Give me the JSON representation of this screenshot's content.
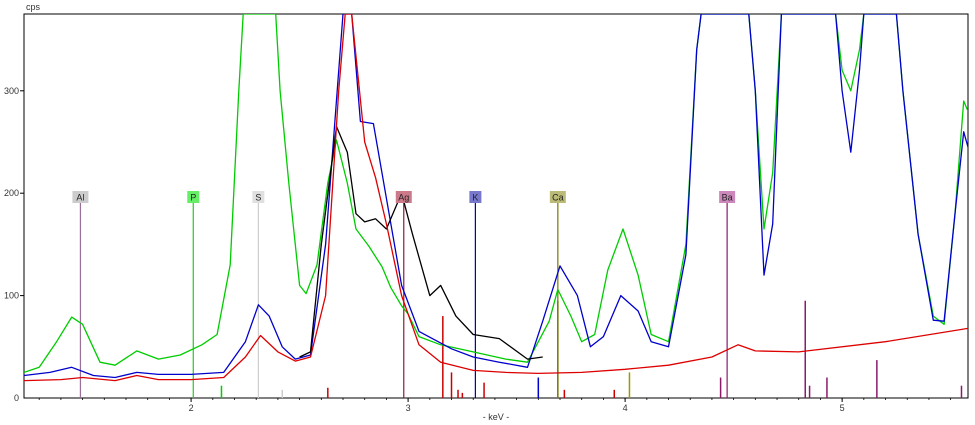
{
  "chart_data": {
    "type": "line",
    "ylabel": "cps",
    "xlabel": "- keV -",
    "xlim": [
      1.23,
      5.58
    ],
    "ylim": [
      0,
      375
    ],
    "x_ticks": [
      2,
      3,
      4,
      5
    ],
    "y_ticks": [
      100,
      200,
      300
    ],
    "grid": false,
    "legend": "none",
    "series": [
      {
        "color": "#00cc00",
        "points": [
          [
            1.23,
            25
          ],
          [
            1.3,
            30
          ],
          [
            1.38,
            55
          ],
          [
            1.45,
            79
          ],
          [
            1.5,
            72
          ],
          [
            1.58,
            35
          ],
          [
            1.65,
            32
          ],
          [
            1.75,
            46
          ],
          [
            1.85,
            38
          ],
          [
            1.95,
            42
          ],
          [
            2.05,
            52
          ],
          [
            2.12,
            62
          ],
          [
            2.18,
            130
          ],
          [
            2.22,
            300
          ],
          [
            2.24,
            375
          ],
          [
            2.39,
            375
          ],
          [
            2.41,
            300
          ],
          [
            2.45,
            210
          ],
          [
            2.5,
            110
          ],
          [
            2.53,
            102
          ],
          [
            2.58,
            130
          ],
          [
            2.63,
            210
          ],
          [
            2.67,
            252
          ],
          [
            2.72,
            210
          ],
          [
            2.76,
            165
          ],
          [
            2.82,
            148
          ],
          [
            2.88,
            128
          ],
          [
            2.92,
            108
          ],
          [
            2.97,
            90
          ],
          [
            3.0,
            82
          ],
          [
            3.05,
            60
          ],
          [
            3.15,
            52
          ],
          [
            3.3,
            45
          ],
          [
            3.45,
            38
          ],
          [
            3.55,
            35
          ],
          [
            3.65,
            75
          ],
          [
            3.69,
            106
          ],
          [
            3.75,
            80
          ],
          [
            3.8,
            55
          ],
          [
            3.86,
            62
          ],
          [
            3.92,
            125
          ],
          [
            3.99,
            165
          ],
          [
            4.06,
            120
          ],
          [
            4.12,
            62
          ],
          [
            4.2,
            55
          ],
          [
            4.28,
            150
          ],
          [
            4.33,
            340
          ],
          [
            4.35,
            375
          ],
          [
            4.57,
            375
          ],
          [
            4.6,
            300
          ],
          [
            4.64,
            165
          ],
          [
            4.68,
            220
          ],
          [
            4.72,
            375
          ],
          [
            4.97,
            375
          ],
          [
            5.0,
            320
          ],
          [
            5.04,
            300
          ],
          [
            5.08,
            340
          ],
          [
            5.1,
            375
          ],
          [
            5.25,
            375
          ],
          [
            5.28,
            300
          ],
          [
            5.35,
            160
          ],
          [
            5.42,
            80
          ],
          [
            5.47,
            72
          ],
          [
            5.52,
            180
          ],
          [
            5.56,
            290
          ],
          [
            5.58,
            280
          ]
        ]
      },
      {
        "color": "#0000cc",
        "points": [
          [
            1.23,
            22
          ],
          [
            1.35,
            25
          ],
          [
            1.45,
            30
          ],
          [
            1.55,
            22
          ],
          [
            1.65,
            20
          ],
          [
            1.75,
            25
          ],
          [
            1.85,
            23
          ],
          [
            2.0,
            23
          ],
          [
            2.15,
            25
          ],
          [
            2.25,
            55
          ],
          [
            2.31,
            91
          ],
          [
            2.36,
            80
          ],
          [
            2.42,
            50
          ],
          [
            2.48,
            38
          ],
          [
            2.55,
            42
          ],
          [
            2.62,
            150
          ],
          [
            2.7,
            375
          ],
          [
            2.74,
            375
          ],
          [
            2.78,
            270
          ],
          [
            2.84,
            268
          ],
          [
            2.9,
            195
          ],
          [
            2.97,
            110
          ],
          [
            3.05,
            65
          ],
          [
            3.2,
            48
          ],
          [
            3.3,
            40
          ],
          [
            3.42,
            35
          ],
          [
            3.55,
            30
          ],
          [
            3.62,
            75
          ],
          [
            3.7,
            129
          ],
          [
            3.78,
            100
          ],
          [
            3.84,
            50
          ],
          [
            3.9,
            60
          ],
          [
            3.98,
            100
          ],
          [
            4.06,
            85
          ],
          [
            4.12,
            55
          ],
          [
            4.2,
            50
          ],
          [
            4.28,
            140
          ],
          [
            4.33,
            340
          ],
          [
            4.35,
            375
          ],
          [
            4.57,
            375
          ],
          [
            4.6,
            300
          ],
          [
            4.64,
            120
          ],
          [
            4.68,
            170
          ],
          [
            4.72,
            375
          ],
          [
            4.97,
            375
          ],
          [
            5.0,
            300
          ],
          [
            5.04,
            240
          ],
          [
            5.08,
            320
          ],
          [
            5.1,
            375
          ],
          [
            5.25,
            375
          ],
          [
            5.28,
            300
          ],
          [
            5.35,
            160
          ],
          [
            5.42,
            76
          ],
          [
            5.47,
            75
          ],
          [
            5.52,
            180
          ],
          [
            5.56,
            260
          ],
          [
            5.58,
            245
          ]
        ]
      },
      {
        "color": "#000000",
        "points": [
          [
            2.5,
            40
          ],
          [
            2.55,
            45
          ],
          [
            2.6,
            150
          ],
          [
            2.67,
            265
          ],
          [
            2.72,
            240
          ],
          [
            2.76,
            180
          ],
          [
            2.8,
            172
          ],
          [
            2.85,
            175
          ],
          [
            2.9,
            165
          ],
          [
            2.97,
            200
          ],
          [
            3.02,
            160
          ],
          [
            3.1,
            100
          ],
          [
            3.15,
            110
          ],
          [
            3.22,
            80
          ],
          [
            3.3,
            62
          ],
          [
            3.42,
            58
          ],
          [
            3.55,
            38
          ],
          [
            3.62,
            40
          ]
        ]
      },
      {
        "color": "#dd0000",
        "points": [
          [
            1.23,
            17
          ],
          [
            1.4,
            18
          ],
          [
            1.5,
            20
          ],
          [
            1.65,
            17
          ],
          [
            1.75,
            22
          ],
          [
            1.85,
            18
          ],
          [
            2.0,
            18
          ],
          [
            2.15,
            20
          ],
          [
            2.25,
            40
          ],
          [
            2.32,
            61
          ],
          [
            2.4,
            45
          ],
          [
            2.48,
            36
          ],
          [
            2.55,
            40
          ],
          [
            2.62,
            100
          ],
          [
            2.68,
            300
          ],
          [
            2.71,
            375
          ],
          [
            2.74,
            375
          ],
          [
            2.8,
            250
          ],
          [
            2.85,
            215
          ],
          [
            2.9,
            170
          ],
          [
            2.97,
            100
          ],
          [
            3.05,
            52
          ],
          [
            3.15,
            35
          ],
          [
            3.3,
            27
          ],
          [
            3.45,
            25
          ],
          [
            3.6,
            24
          ],
          [
            3.8,
            25
          ],
          [
            4.0,
            28
          ],
          [
            4.2,
            32
          ],
          [
            4.4,
            40
          ],
          [
            4.52,
            52
          ],
          [
            4.6,
            46
          ],
          [
            4.8,
            45
          ],
          [
            5.2,
            55
          ],
          [
            5.58,
            68
          ]
        ]
      }
    ],
    "element_markers": [
      {
        "label": "Al",
        "x": 1.49,
        "color": "#9a6f9a",
        "box_color": "#cccccc"
      },
      {
        "label": "P",
        "x": 2.01,
        "color": "#22cc22",
        "box_color": "#66ee66"
      },
      {
        "label": "S",
        "x": 2.31,
        "color": "#cccccc",
        "box_color": "#e0e0e0"
      },
      {
        "label": "Ag",
        "x": 2.98,
        "color": "#8b1a3a",
        "box_color": "#cc7a8a"
      },
      {
        "label": "K",
        "x": 3.31,
        "color": "#0000aa",
        "box_color": "#7777cc"
      },
      {
        "label": "Ca",
        "x": 3.69,
        "color": "#777700",
        "box_color": "#bbbb77"
      },
      {
        "label": "Ba",
        "x": 4.47,
        "color": "#8b1a6b",
        "box_color": "#cc88bb"
      }
    ],
    "reference_lines": [
      {
        "x": 2.14,
        "h": 12,
        "color": "#00cc00"
      },
      {
        "x": 2.42,
        "h": 8,
        "color": "#cccccc"
      },
      {
        "x": 2.63,
        "h": 10,
        "color": "#cc0000"
      },
      {
        "x": 3.16,
        "h": 80,
        "color": "#cc0000"
      },
      {
        "x": 3.2,
        "h": 25,
        "color": "#cc0000"
      },
      {
        "x": 3.23,
        "h": 8,
        "color": "#cc0000"
      },
      {
        "x": 3.25,
        "h": 5,
        "color": "#cc0000"
      },
      {
        "x": 3.35,
        "h": 15,
        "color": "#cc0000"
      },
      {
        "x": 3.6,
        "h": 20,
        "color": "#0000cc"
      },
      {
        "x": 3.69,
        "h": 95,
        "color": "#777700"
      },
      {
        "x": 3.72,
        "h": 8,
        "color": "#cc0000"
      },
      {
        "x": 3.95,
        "h": 8,
        "color": "#cc0000"
      },
      {
        "x": 4.02,
        "h": 25,
        "color": "#999900"
      },
      {
        "x": 4.44,
        "h": 20,
        "color": "#8b1a6b"
      },
      {
        "x": 4.83,
        "h": 95,
        "color": "#8b1a6b"
      },
      {
        "x": 4.85,
        "h": 12,
        "color": "#8b1a6b"
      },
      {
        "x": 4.93,
        "h": 20,
        "color": "#8b1a6b"
      },
      {
        "x": 5.16,
        "h": 37,
        "color": "#8b1a6b"
      },
      {
        "x": 5.55,
        "h": 12,
        "color": "#8b1a6b"
      }
    ]
  }
}
